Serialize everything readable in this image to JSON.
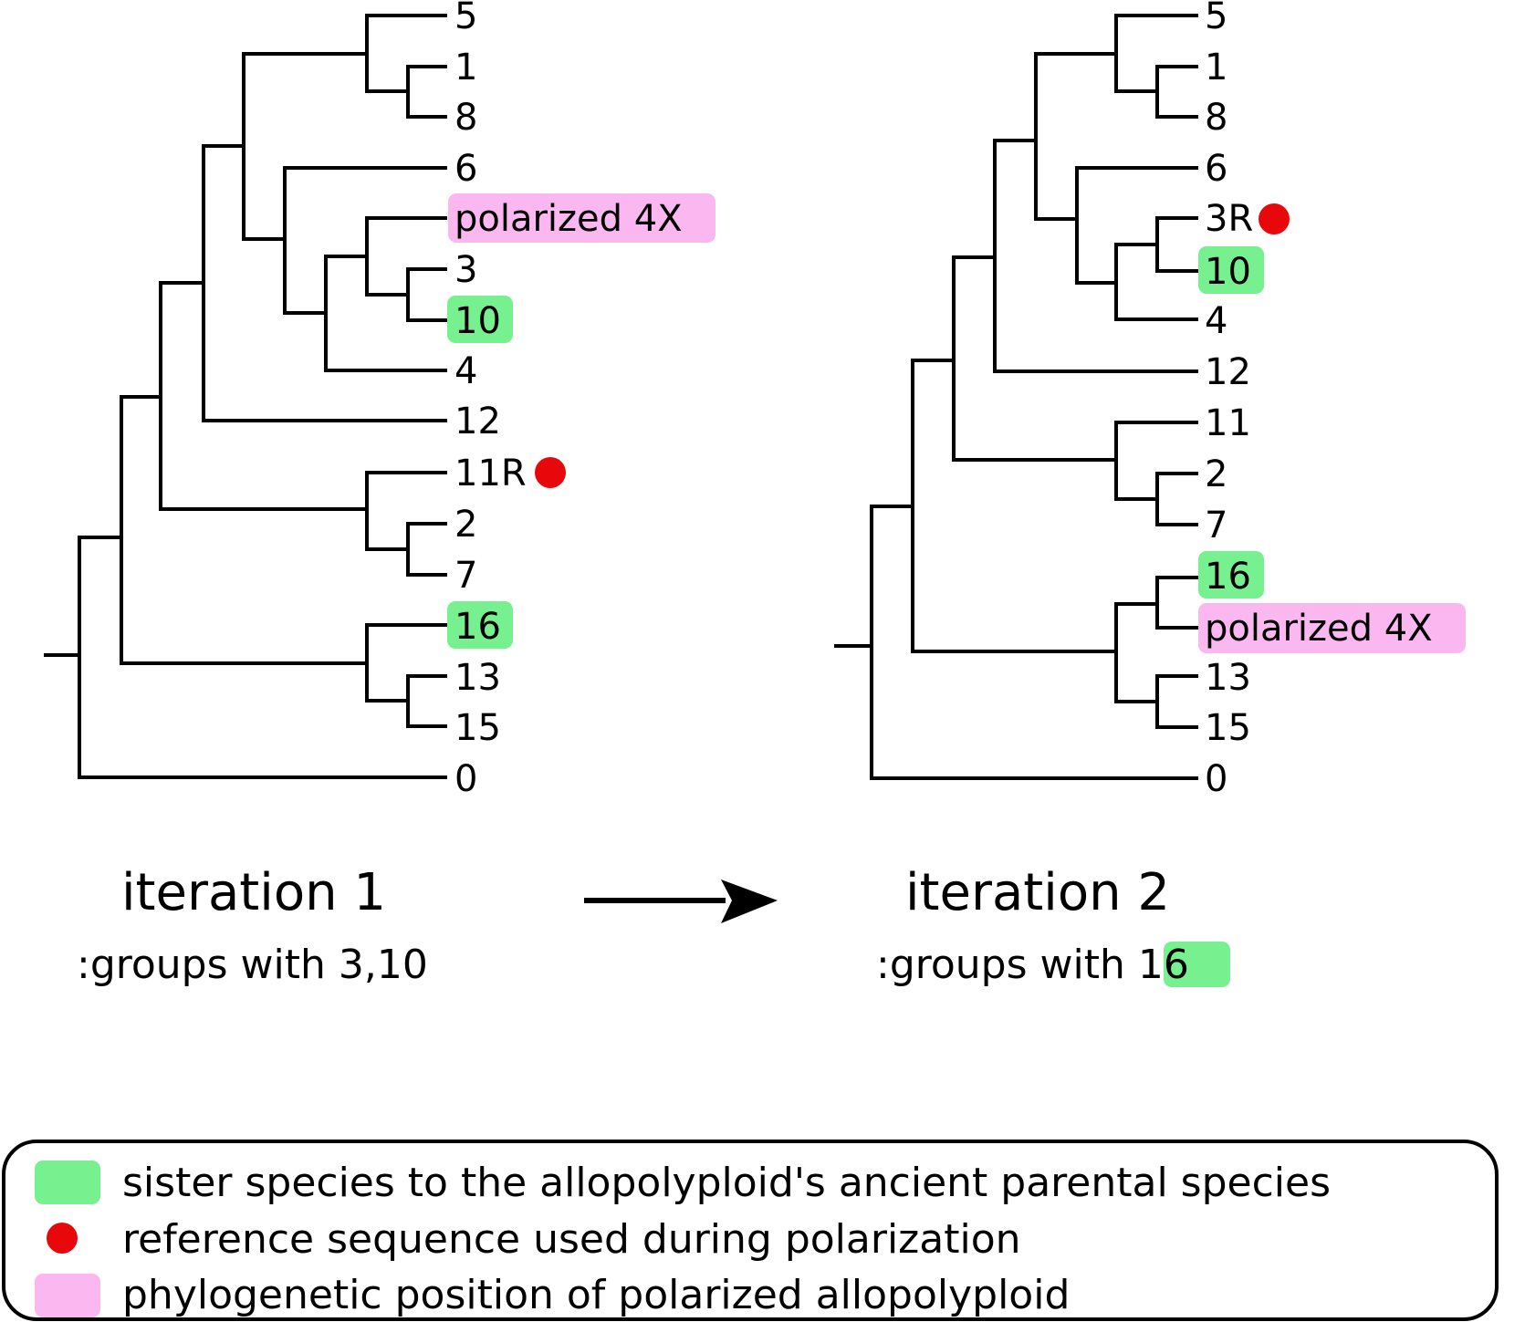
{
  "colors": {
    "sister_highlight": "#77f08f",
    "polarized_highlight": "#fbb8f0",
    "reference_dot": "#e8070b",
    "line": "#000000"
  },
  "tree1": {
    "caption_title": "iteration 1",
    "caption_sub": ":groups with 3,10",
    "leaves": [
      {
        "label": "5"
      },
      {
        "label": "1"
      },
      {
        "label": "8"
      },
      {
        "label": "6"
      },
      {
        "label": "polarized 4X",
        "highlight": "polarized"
      },
      {
        "label": "3"
      },
      {
        "label": "10",
        "highlight": "sister"
      },
      {
        "label": "4"
      },
      {
        "label": "12"
      },
      {
        "label": "11R",
        "dot": true
      },
      {
        "label": "2"
      },
      {
        "label": "7"
      },
      {
        "label": "16",
        "highlight": "sister"
      },
      {
        "label": "13"
      },
      {
        "label": "15"
      },
      {
        "label": "0"
      }
    ]
  },
  "tree2": {
    "caption_title": "iteration 2",
    "caption_sub_prefix": ":groups with ",
    "caption_sub_highlight": "16",
    "leaves": [
      {
        "label": "5"
      },
      {
        "label": "1"
      },
      {
        "label": "8"
      },
      {
        "label": "6"
      },
      {
        "label": "3R",
        "dot": true
      },
      {
        "label": "10",
        "highlight": "sister"
      },
      {
        "label": "4"
      },
      {
        "label": "12"
      },
      {
        "label": "11"
      },
      {
        "label": "2"
      },
      {
        "label": "7"
      },
      {
        "label": "16",
        "highlight": "sister"
      },
      {
        "label": "polarized 4X",
        "highlight": "polarized"
      },
      {
        "label": "13"
      },
      {
        "label": "15"
      },
      {
        "label": "0"
      }
    ]
  },
  "legend": {
    "items": [
      {
        "symbol": "green-box",
        "text": "sister species to the allopolyploid's ancient parental species"
      },
      {
        "symbol": "red-dot",
        "text": "reference sequence used during polarization"
      },
      {
        "symbol": "pink-box",
        "text": "phylogenetic position of polarized allopolyploid"
      }
    ]
  }
}
